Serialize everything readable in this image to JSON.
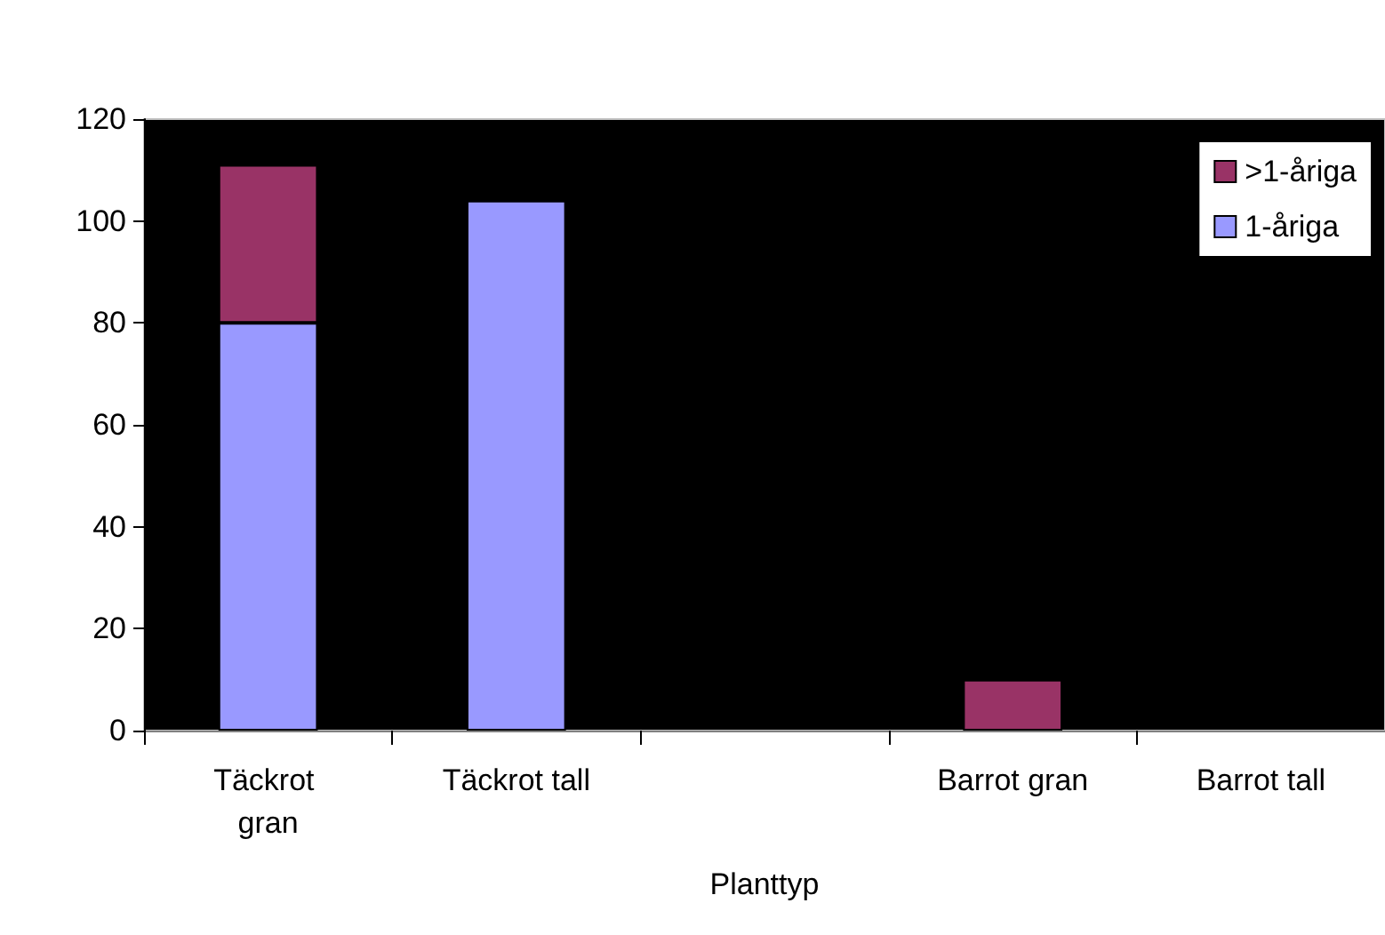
{
  "chart_data": {
    "type": "bar",
    "stacked": true,
    "xlabel": "Planttyp",
    "categories": [
      "Täckrot gran",
      "Täckrot tall",
      null,
      "Barrot gran",
      "Barrot tall"
    ],
    "series": [
      {
        "name": "1-åriga",
        "color": "#9999ff",
        "values": [
          80,
          104,
          null,
          null,
          null
        ]
      },
      {
        "name": ">1-åriga",
        "color": "#993366",
        "values": [
          31,
          null,
          null,
          10,
          null
        ]
      }
    ],
    "ylim": [
      0,
      120
    ],
    "yticks": [
      0,
      20,
      40,
      60,
      80,
      100,
      120
    ],
    "grid": false,
    "legend": "top right"
  }
}
